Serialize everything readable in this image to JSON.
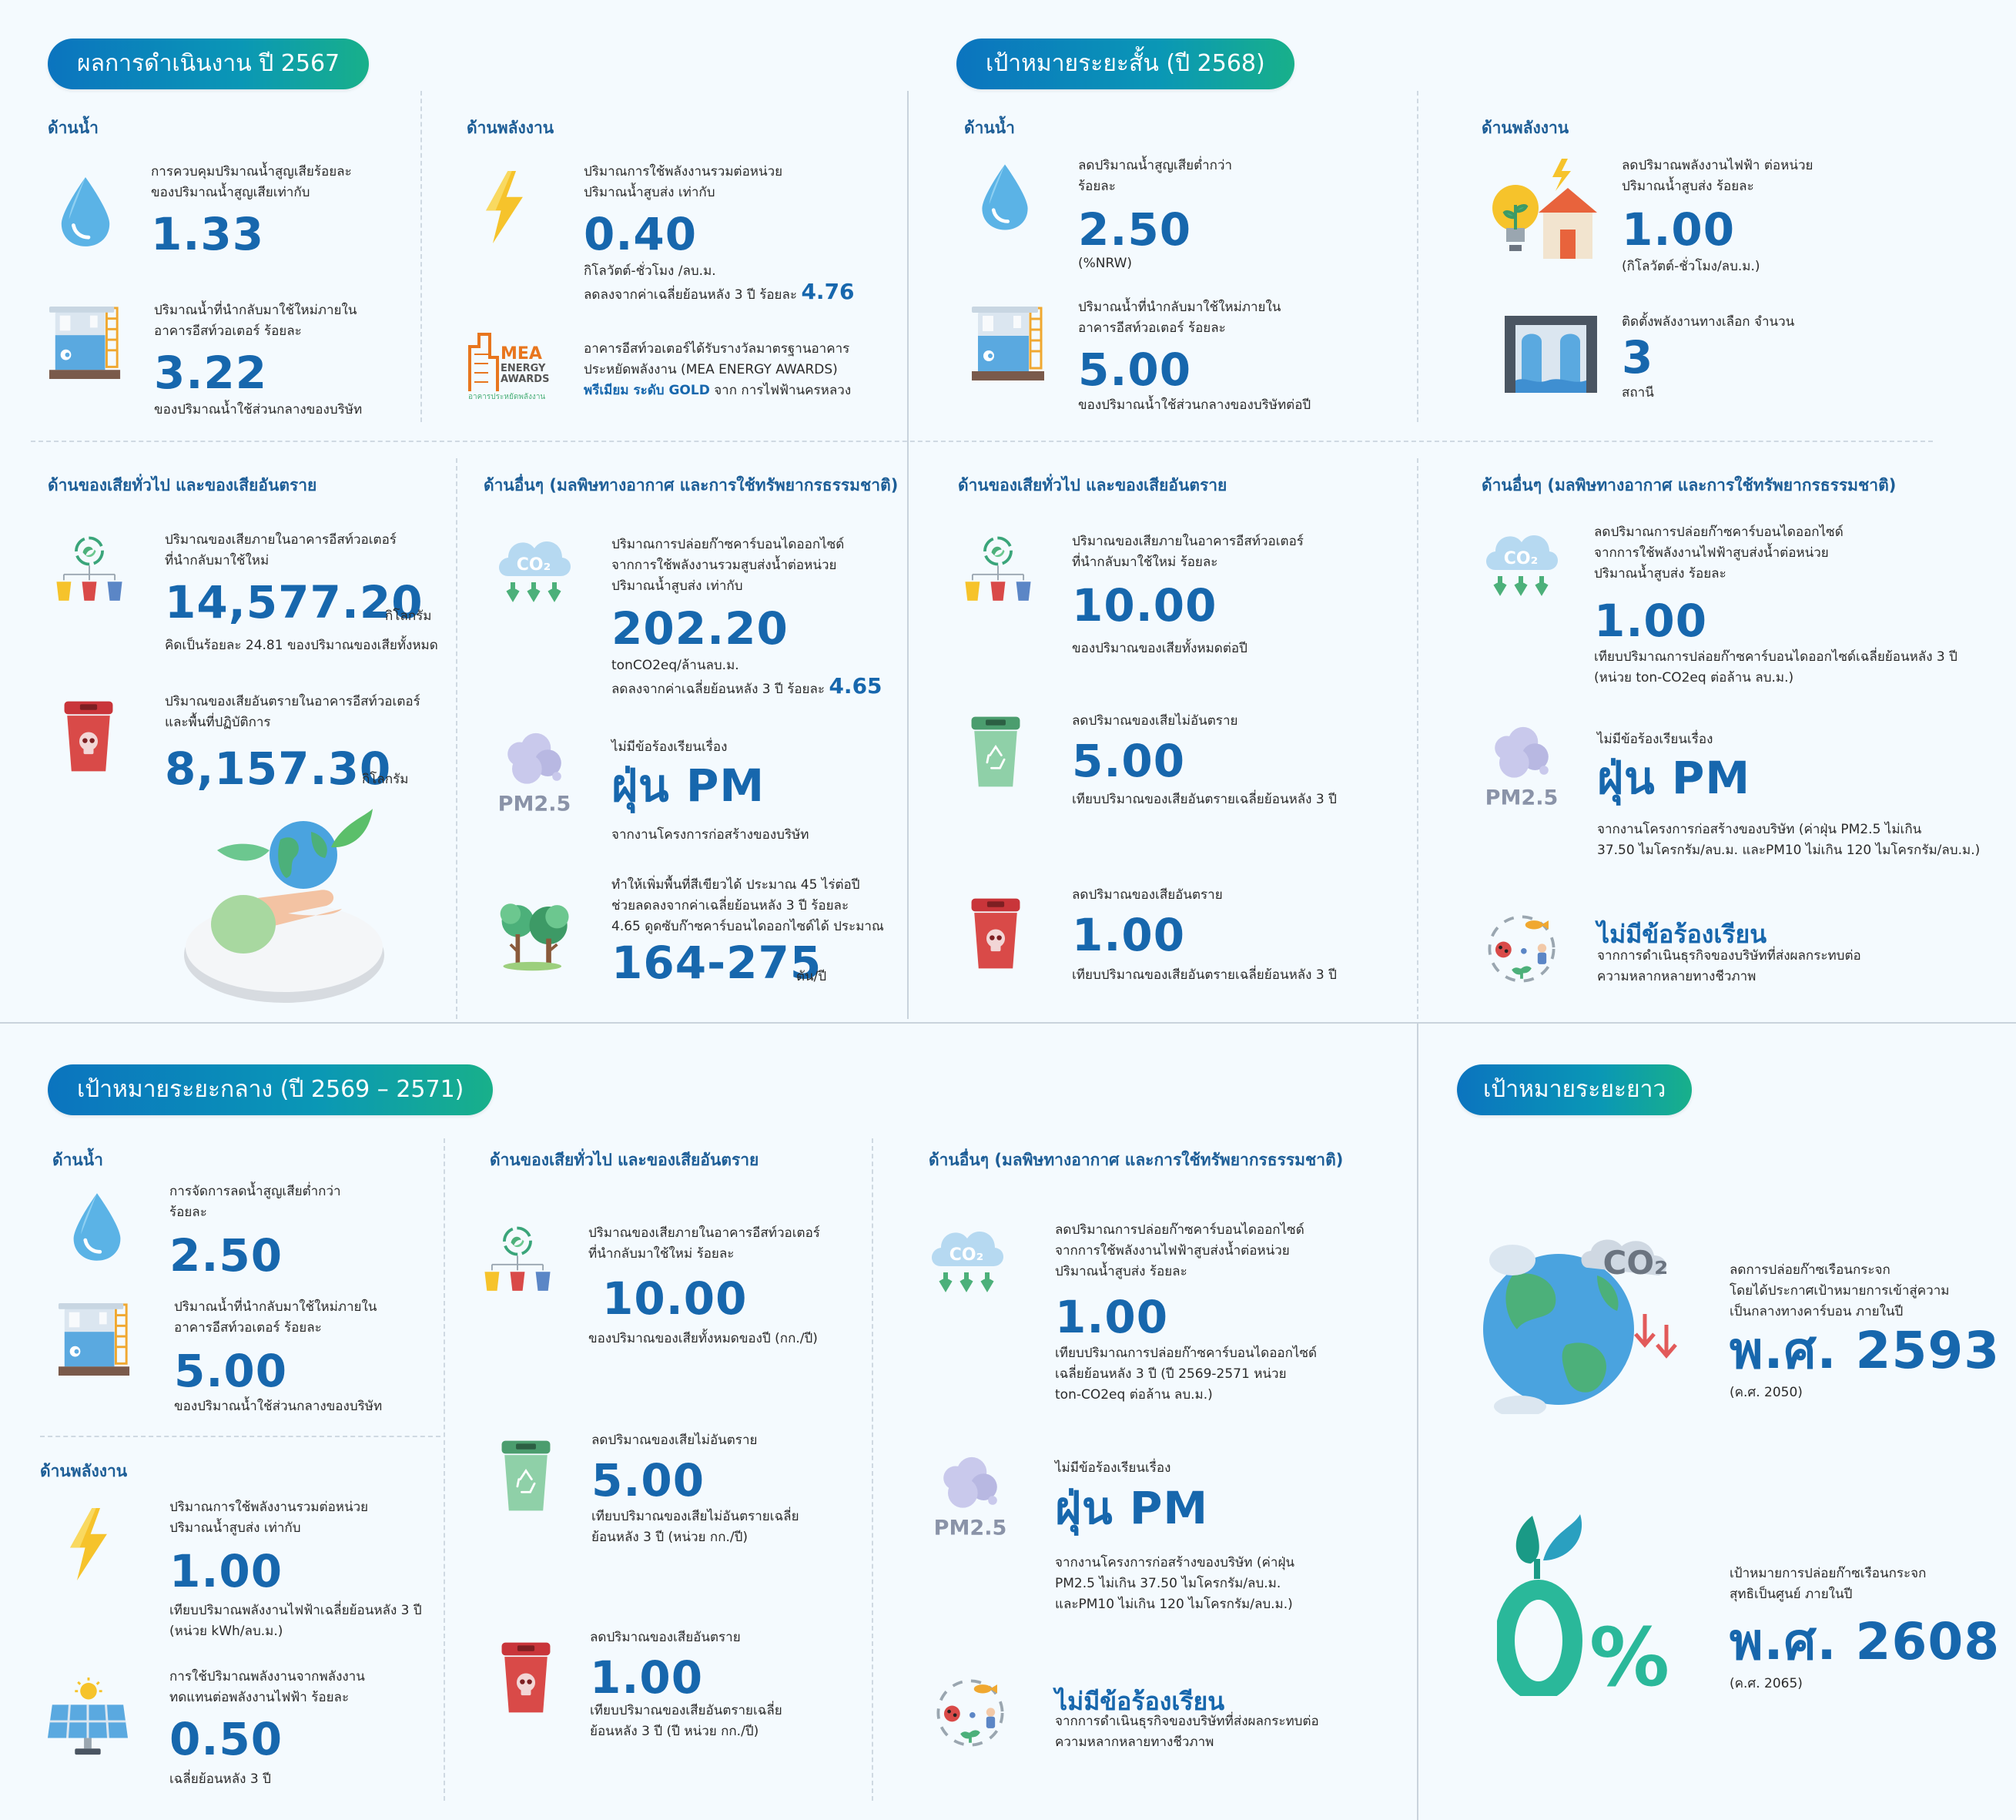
{
  "s1": {
    "title": "ผลการดำเนินงาน ปี 2567",
    "water": {
      "head": "ด้านน้ำ",
      "nrw_desc1": "การควบคุมปริมาณน้ำสูญเสียร้อยละ",
      "nrw_desc2": "ของปริมาณน้ำสูญเสียเท่ากับ",
      "nrw_value": "1.33",
      "recycle_desc1": "ปริมาณน้ำที่นำกลับมาใช้ใหม่ภายใน",
      "recycle_desc2": "อาคารอีสท์วอเตอร์ ร้อยละ",
      "recycle_value": "3.22",
      "recycle_note": "ของปริมาณน้ำใช้ส่วนกลางของบริษัท"
    },
    "energy": {
      "head": "ด้านพลังงาน",
      "desc1": "ปริมาณการใช้พลังงานรวมต่อหน่วย",
      "desc2": "ปริมาณน้ำสูบส่ง เท่ากับ",
      "value": "0.40",
      "unit": "กิโลวัตต์-ชั่วโมง /ลบ.ม.",
      "reduce_text": "ลดลงจากค่าเฉลี่ยย้อนหลัง 3 ปี ร้อยละ",
      "reduce_value": "4.76",
      "award1": "อาคารอีสท์วอเตอร์ได้รับรางวัลมาตรฐานอาคาร",
      "award2": "ประหยัดพลังงาน (MEA ENERGY AWARDS)",
      "award3_bold": "พรีเมียม ระดับ GOLD",
      "award3_rest": " จาก การไฟฟ้านครหลวง",
      "logo_l1": "MEA",
      "logo_l2": "ENERGY",
      "logo_l3": "AWARDS",
      "logo_l4": "อาคารประหยัดพลังงาน"
    },
    "waste": {
      "head": "ด้านของเสียทั่วไป และของเสียอันตราย",
      "gen_desc1": "ปริมาณของเสียภายในอาคารอีสท์วอเตอร์",
      "gen_desc2": "ที่นำกลับมาใช้ใหม่",
      "gen_value": "14,577.20",
      "gen_unit": "กิโลกรัม",
      "gen_note": "คิดเป็นร้อยละ 24.81 ของปริมาณของเสียทั้งหมด",
      "haz_desc1": "ปริมาณของเสียอันตรายในอาคารอีสท์วอเตอร์",
      "haz_desc2": "และพื้นที่ปฏิบัติการ",
      "haz_value": "8,157.30",
      "haz_unit": "กิโลกรัม"
    },
    "other": {
      "head": "ด้านอื่นๆ (มลพิษทางอากาศ และการใช้ทรัพยากรธรรมชาติ)",
      "co2_desc1": "ปริมาณการปล่อยก๊าซคาร์บอนไดออกไซด์",
      "co2_desc2": "จากการใช้พลังงานรวมสูบส่งน้ำต่อหน่วย",
      "co2_desc3": "ปริมาณน้ำสูบส่ง เท่ากับ",
      "co2_value": "202.20",
      "co2_unit": "tonCO2eq/ล้านลบ.ม.",
      "co2_reduce": "ลดลงจากค่าเฉลี่ยย้อนหลัง 3 ปี ร้อยละ",
      "co2_reduce_value": "4.65",
      "pm_pre": "ไม่มีข้อร้องเรียนเรื่อง",
      "pm_title": "ฝุ่น PM",
      "pm_note": "จากงานโครงการก่อสร้างของบริษัท",
      "tree1": "ทำให้เพิ่มพื้นที่สีเขียวได้ ประมาณ 45 ไร่ต่อปี",
      "tree2": "ช่วยลดลงจากค่าเฉลี่ยย้อนหลัง 3 ปี ร้อยละ",
      "tree3": "4.65 ดูดซับก๊าซคาร์บอนไดออกไซด์ได้ ประมาณ",
      "tree_value": "164-275",
      "tree_unit": "ตัน/ปี",
      "pm_label": "PM2.5",
      "co2_label": "CO₂"
    }
  },
  "s2": {
    "title": "เป้าหมายระยะสั้น (ปี 2568)",
    "water": {
      "head": "ด้านน้ำ",
      "nrw_desc1": "ลดปริมาณน้ำสูญเสียต่ำกว่า",
      "nrw_desc2": "ร้อยละ",
      "nrw_value": "2.50",
      "nrw_note": "(%NRW)",
      "recycle_desc1": "ปริมาณน้ำที่นำกลับมาใช้ใหม่ภายใน",
      "recycle_desc2": "อาคารอีสท์วอเตอร์ ร้อยละ",
      "recycle_value": "5.00",
      "recycle_note": "ของปริมาณน้ำใช้ส่วนกลางของบริษัทต่อปี"
    },
    "energy": {
      "head": "ด้านพลังงาน",
      "desc1": "ลดปริมาณพลังงานไฟฟ้า ต่อหน่วย",
      "desc2": "ปริมาณน้ำสูบส่ง ร้อยละ",
      "value": "1.00",
      "unit": "(กิโลวัตต์-ชั่วโมง/ลบ.ม.)",
      "alt_desc": "ติดตั้งพลังงานทางเลือก จำนวน",
      "alt_value": "3",
      "alt_unit": "สถานี"
    },
    "waste": {
      "head": "ด้านของเสียทั่วไป และของเสียอันตราย",
      "gen_desc1": "ปริมาณของเสียภายในอาคารอีสท์วอเตอร์",
      "gen_desc2": "ที่นำกลับมาใช้ใหม่ ร้อยละ",
      "gen_value": "10.00",
      "gen_note": "ของปริมาณของเสียทั้งหมดต่อปี",
      "nonhaz_desc": "ลดปริมาณของเสียไม่อันตราย",
      "nonhaz_value": "5.00",
      "nonhaz_note": "เทียบปริมาณของเสียอันตรายเฉลี่ยย้อนหลัง 3 ปี",
      "haz_desc": "ลดปริมาณของเสียอันตราย",
      "haz_value": "1.00",
      "haz_note": "เทียบปริมาณของเสียอันตรายเฉลี่ยย้อนหลัง 3 ปี"
    },
    "other": {
      "head": "ด้านอื่นๆ (มลพิษทางอากาศ และการใช้ทรัพยากรธรรมชาติ)",
      "co2_desc1": "ลดปริมาณการปล่อยก๊าซคาร์บอนไดออกไซด์",
      "co2_desc2": "จากการใช้พลังงานไฟฟ้าสูบส่งน้ำต่อหน่วย",
      "co2_desc3": "ปริมาณน้ำสูบส่ง ร้อยละ",
      "co2_value": "1.00",
      "co2_note1": "เทียบปริมาณการปล่อยก๊าซคาร์บอนไดออกไซด์เฉลี่ยย้อนหลัง 3 ปี",
      "co2_note2": "(หน่วย ton-CO2eq ต่อล้าน ลบ.ม.)",
      "pm_pre": "ไม่มีข้อร้องเรียนเรื่อง",
      "pm_title": "ฝุ่น PM",
      "pm_note1": "จากงานโครงการก่อสร้างของบริษัท (ค่าฝุ่น PM2.5 ไม่เกิน",
      "pm_note2": "37.50 ไมโครกรัม/ลบ.ม. และPM10 ไม่เกิน 120 ไมโครกรัม/ลบ.ม.)",
      "bio_title": "ไม่มีข้อร้องเรียน",
      "bio_note1": "จากการดำเนินธุรกิจของบริษัทที่ส่งผลกระทบต่อ",
      "bio_note2": "ความหลากหลายทางชีวภาพ",
      "pm_label": "PM2.5",
      "co2_label": "CO₂"
    }
  },
  "s3": {
    "title": "เป้าหมายระยะกลาง (ปี 2569 – 2571)",
    "water": {
      "head": "ด้านน้ำ",
      "nrw_desc1": "การจัดการลดน้ำสูญเสียต่ำกว่า",
      "nrw_desc2": "ร้อยละ",
      "nrw_value": "2.50",
      "recycle_desc1": "ปริมาณน้ำที่นำกลับมาใช้ใหม่ภายใน",
      "recycle_desc2": "อาคารอีสท์วอเตอร์ ร้อยละ",
      "recycle_value": "5.00",
      "recycle_note": "ของปริมาณน้ำใช้ส่วนกลางของบริษัท"
    },
    "energy": {
      "head": "ด้านพลังงาน",
      "desc1": "ปริมาณการใช้พลังงานรวมต่อหน่วย",
      "desc2": "ปริมาณน้ำสูบส่ง เท่ากับ",
      "value": "1.00",
      "note1": "เทียบปริมาณพลังงานไฟฟ้าเฉลี่ยย้อนหลัง 3 ปี",
      "note2": "(หน่วย kWh/ลบ.ม.)",
      "solar_desc1": "การใช้ปริมาณพลังงานจากพลังงาน",
      "solar_desc2": "ทดแทนต่อพลังงานไฟฟ้า ร้อยละ",
      "solar_value": "0.50",
      "solar_note": "เฉลี่ยย้อนหลัง 3 ปี"
    },
    "waste": {
      "head": "ด้านของเสียทั่วไป และของเสียอันตราย",
      "gen_desc1": "ปริมาณของเสียภายในอาคารอีสท์วอเตอร์",
      "gen_desc2": "ที่นำกลับมาใช้ใหม่ ร้อยละ",
      "gen_value": "10.00",
      "gen_note": "ของปริมาณของเสียทั้งหมดของปี (กก./ปี)",
      "nonhaz_desc": "ลดปริมาณของเสียไม่อันตราย",
      "nonhaz_value": "5.00",
      "nonhaz_note1": "เทียบปริมาณของเสียไม่อันตรายเฉลี่ย",
      "nonhaz_note2": "ย้อนหลัง 3 ปี (หน่วย กก./ปี)",
      "haz_desc": "ลดปริมาณของเสียอันตราย",
      "haz_value": "1.00",
      "haz_note1": "เทียบปริมาณของเสียอันตรายเฉลี่ย",
      "haz_note2": "ย้อนหลัง 3 ปี (ปี หน่วย กก./ปี)"
    },
    "other": {
      "head": "ด้านอื่นๆ (มลพิษทางอากาศ และการใช้ทรัพยากรธรรมชาติ)",
      "co2_desc1": "ลดปริมาณการปล่อยก๊าซคาร์บอนไดออกไซด์",
      "co2_desc2": "จากการใช้พลังงานไฟฟ้าสูบส่งน้ำต่อหน่วย",
      "co2_desc3": "ปริมาณน้ำสูบส่ง ร้อยละ",
      "co2_value": "1.00",
      "co2_note1": "เทียบปริมาณการปล่อยก๊าซคาร์บอนไดออกไซด์",
      "co2_note2": "เฉลี่ยย้อนหลัง 3 ปี (ปี 2569-2571 หน่วย",
      "co2_note3": "ton-CO2eq ต่อล้าน ลบ.ม.)",
      "pm_pre": "ไม่มีข้อร้องเรียนเรื่อง",
      "pm_title": "ฝุ่น PM",
      "pm_note1": "จากงานโครงการก่อสร้างของบริษัท (ค่าฝุ่น",
      "pm_note2": "PM2.5 ไม่เกิน 37.50 ไมโครกรัม/ลบ.ม.",
      "pm_note3": "และPM10 ไม่เกิน 120 ไมโครกรัม/ลบ.ม.)",
      "bio_title": "ไม่มีข้อร้องเรียน",
      "bio_note1": "จากการดำเนินธุรกิจของบริษัทที่ส่งผลกระทบต่อ",
      "bio_note2": "ความหลากหลายทางชีวภาพ",
      "pm_label": "PM2.5",
      "co2_label": "CO₂"
    }
  },
  "s4": {
    "title": "เป้าหมายระยะยาว",
    "cn_desc1": "ลดการปล่อยก๊าซเรือนกระจก",
    "cn_desc2": "โดยได้ประกาศเป้าหมายการเข้าสู่ความ",
    "cn_desc3": "เป็นกลางทางคาร์บอน ภายในปี",
    "cn_value": "พ.ศ. 2593",
    "cn_note": "(ค.ศ. 2050)",
    "nz_desc1": "เป้าหมายการปล่อยก๊าซเรือนกระจก",
    "nz_desc2": "สุทธิเป็นศูนย์ ภายในปี",
    "nz_value": "พ.ศ. 2608",
    "nz_note": "(ค.ศ. 2065)",
    "co2_label": "CO₂",
    "zero_label": "0%"
  },
  "colors": {
    "accent": "#1767ad",
    "pill_start": "#0b74bf",
    "pill_end": "#18b08a",
    "head": "#1d5e97"
  },
  "icons": [
    "water-drop-icon",
    "water-tank-icon",
    "lightning-icon",
    "mea-award-logo",
    "recycle-bins-icon",
    "hazard-bin-icon",
    "eco-globe-hand-icon",
    "co2-cloud-icon",
    "pm25-cloud-icon",
    "trees-icon",
    "green-bin-icon",
    "lightbulb-house-icon",
    "dam-icon",
    "biodiversity-icon",
    "solar-panel-icon",
    "earth-co2-icon",
    "zero-percent-sprout-icon"
  ]
}
